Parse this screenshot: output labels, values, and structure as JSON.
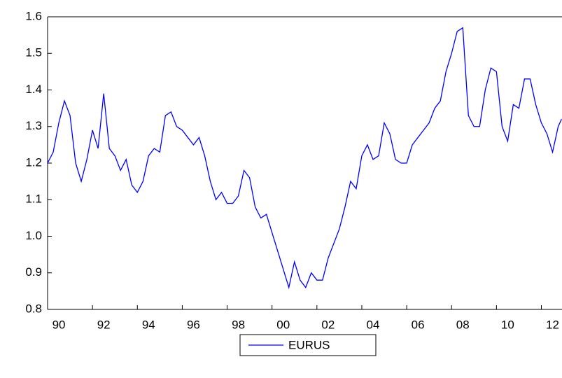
{
  "chart_data": {
    "type": "line",
    "x": [
      1990,
      1990.25,
      1990.5,
      1990.75,
      1991,
      1991.25,
      1991.5,
      1991.75,
      1992,
      1992.25,
      1992.5,
      1992.75,
      1993,
      1993.25,
      1993.5,
      1993.75,
      1994,
      1994.25,
      1994.5,
      1994.75,
      1995,
      1995.25,
      1995.5,
      1995.75,
      1996,
      1996.25,
      1996.5,
      1996.75,
      1997,
      1997.25,
      1997.5,
      1997.75,
      1998,
      1998.25,
      1998.5,
      1998.75,
      1999,
      1999.25,
      1999.5,
      1999.75,
      2000,
      2000.25,
      2000.5,
      2000.75,
      2001,
      2001.25,
      2001.5,
      2001.75,
      2002,
      2002.25,
      2002.5,
      2002.75,
      2003,
      2003.25,
      2003.5,
      2003.75,
      2004,
      2004.25,
      2004.5,
      2004.75,
      2005,
      2005.25,
      2005.5,
      2005.75,
      2006,
      2006.25,
      2006.5,
      2006.75,
      2007,
      2007.25,
      2007.5,
      2007.75,
      2008,
      2008.25,
      2008.5,
      2008.75,
      2009,
      2009.25,
      2009.5,
      2009.75,
      2010,
      2010.25,
      2010.5,
      2010.75,
      2011,
      2011.25,
      2011.5,
      2011.75,
      2012,
      2012.25,
      2012.5,
      2012.75,
      2012.9
    ],
    "series": [
      {
        "name": "EURUS",
        "color": "#0000ff",
        "values": [
          1.2,
          1.23,
          1.31,
          1.37,
          1.33,
          1.2,
          1.15,
          1.21,
          1.29,
          1.24,
          1.39,
          1.24,
          1.22,
          1.18,
          1.21,
          1.14,
          1.12,
          1.15,
          1.22,
          1.24,
          1.23,
          1.33,
          1.34,
          1.3,
          1.29,
          1.27,
          1.25,
          1.27,
          1.22,
          1.15,
          1.1,
          1.12,
          1.09,
          1.09,
          1.11,
          1.18,
          1.16,
          1.08,
          1.05,
          1.06,
          1.01,
          0.96,
          0.91,
          0.86,
          0.93,
          0.88,
          0.86,
          0.9,
          0.88,
          0.88,
          0.94,
          0.98,
          1.02,
          1.08,
          1.15,
          1.13,
          1.22,
          1.25,
          1.21,
          1.22,
          1.31,
          1.28,
          1.21,
          1.2,
          1.2,
          1.25,
          1.27,
          1.29,
          1.31,
          1.35,
          1.37,
          1.45,
          1.5,
          1.56,
          1.57,
          1.33,
          1.3,
          1.3,
          1.4,
          1.46,
          1.45,
          1.3,
          1.26,
          1.36,
          1.35,
          1.43,
          1.43,
          1.36,
          1.31,
          1.28,
          1.23,
          1.3,
          1.32
        ]
      }
    ],
    "xlim": [
      1990,
      2012.92
    ],
    "xticks": [
      {
        "value": 1990,
        "label": "90"
      },
      {
        "value": 1992,
        "label": "92"
      },
      {
        "value": 1994,
        "label": "94"
      },
      {
        "value": 1996,
        "label": "96"
      },
      {
        "value": 1998,
        "label": "98"
      },
      {
        "value": 2000,
        "label": "00"
      },
      {
        "value": 2002,
        "label": "02"
      },
      {
        "value": 2004,
        "label": "04"
      },
      {
        "value": 2006,
        "label": "06"
      },
      {
        "value": 2008,
        "label": "08"
      },
      {
        "value": 2010,
        "label": "10"
      },
      {
        "value": 2012,
        "label": "12"
      }
    ],
    "ylim": [
      0.8,
      1.6
    ],
    "yticks": [
      0.8,
      0.9,
      {
        "value": 1.0,
        "label": "1.0"
      },
      1.1,
      1.2,
      1.3,
      1.4,
      1.5,
      1.6
    ],
    "legend": "bottom"
  }
}
